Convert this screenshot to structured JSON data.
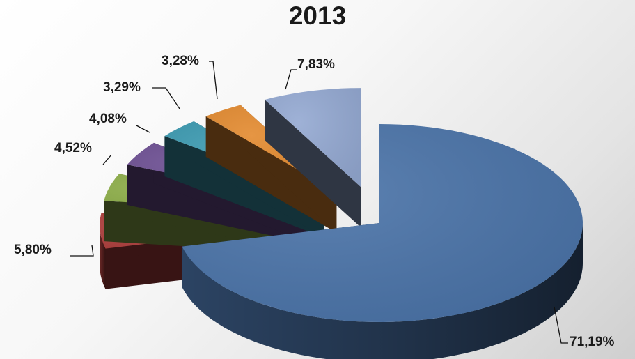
{
  "chart_data": {
    "type": "pie",
    "title": "2013",
    "style": "3d-exploded",
    "slices": [
      {
        "label": "71,19%",
        "value": 71.19,
        "color": "#4a73a8"
      },
      {
        "label": "5,80%",
        "value": 5.8,
        "color": "#b0403e"
      },
      {
        "label": "4,52%",
        "value": 4.52,
        "color": "#8fb04a"
      },
      {
        "label": "4,08%",
        "value": 4.08,
        "color": "#6d4f93"
      },
      {
        "label": "3,29%",
        "value": 3.29,
        "color": "#3a99b0"
      },
      {
        "label": "3,28%",
        "value": 3.28,
        "color": "#e38a2f"
      },
      {
        "label": "7,83%",
        "value": 7.83,
        "color": "#94a9d2"
      }
    ]
  }
}
